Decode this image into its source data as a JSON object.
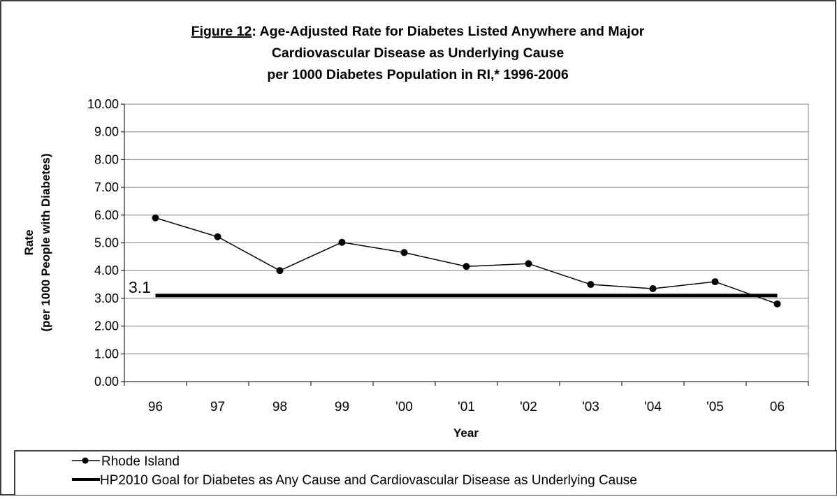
{
  "chart_data": {
    "type": "line",
    "title_prefix": "Figure 12",
    "title_line1_rest": ": Age-Adjusted Rate for Diabetes Listed Anywhere and Major",
    "title_line2": "Cardiovascular Disease as Underlying Cause",
    "title_line3": "per 1000 Diabetes Population in RI,* 1996-2006",
    "xlabel": "Year",
    "ylabel_line1": "Rate",
    "ylabel_line2": "(per 1000 People with Diabetes)",
    "categories": [
      "96",
      "97",
      "98",
      "99",
      "'00",
      "'01",
      "'02",
      "'03",
      "'04",
      "'05",
      "06"
    ],
    "ylim": [
      0,
      10
    ],
    "ytick_labels": [
      "0.00",
      "1.00",
      "2.00",
      "3.00",
      "4.00",
      "5.00",
      "6.00",
      "7.00",
      "8.00",
      "9.00",
      "10.00"
    ],
    "ytick_values": [
      0,
      1,
      2,
      3,
      4,
      5,
      6,
      7,
      8,
      9,
      10
    ],
    "grid": "horizontal",
    "legend_position": "bottom",
    "series": [
      {
        "name": "Rhode Island",
        "values": [
          5.9,
          5.22,
          4.0,
          5.02,
          4.65,
          4.15,
          4.25,
          3.5,
          3.35,
          3.6,
          2.8
        ],
        "color": "#000000",
        "marker": "circle"
      }
    ],
    "goal": {
      "name": "HP2010 Goal for Diabetes as Any Cause and Cardiovascular Disease as Underlying Cause",
      "value": 3.1,
      "label": "3.1",
      "color": "#000000"
    }
  }
}
